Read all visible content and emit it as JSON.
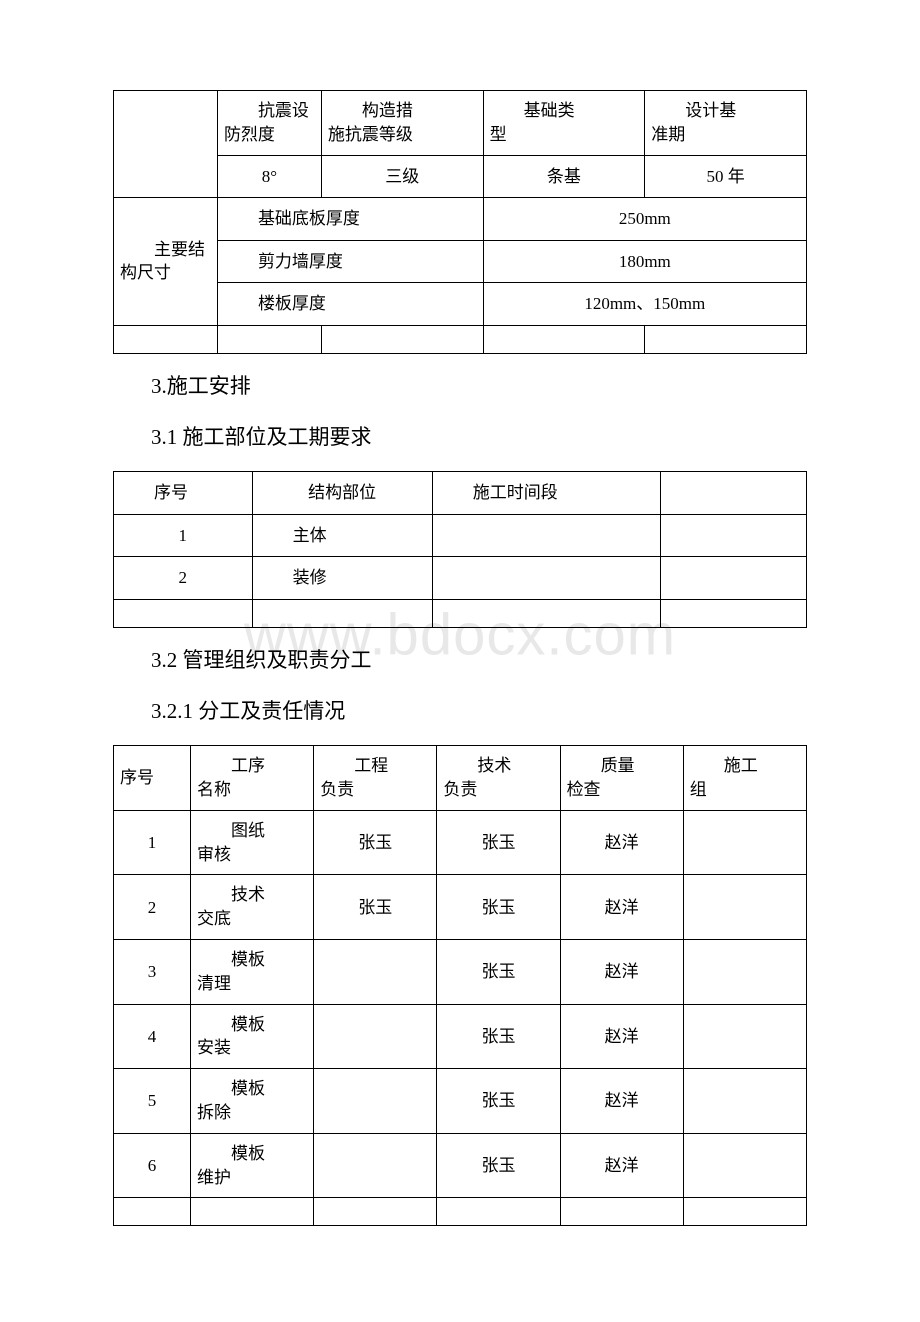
{
  "watermark": "www.bdocx.com",
  "table1": {
    "row_header_labels": {
      "seismic_intensity": {
        "l1": "抗震设",
        "l2": "防烈度"
      },
      "seismic_grade": {
        "l1": "构造措",
        "l2": "施抗震等级"
      },
      "foundation_type": {
        "l1": "基础类",
        "l2": "型"
      },
      "design_period": {
        "l1": "设计基",
        "l2": "准期"
      }
    },
    "row_header_values": {
      "seismic_intensity": "8°",
      "seismic_grade": "三级",
      "foundation_type": "条基",
      "design_period": "50 年"
    },
    "main_dim_label": {
      "l1": "主要结",
      "l2": "构尺寸"
    },
    "dims": {
      "foundation_thickness": {
        "label": "基础底板厚度",
        "value": "250mm"
      },
      "shear_wall_thickness": {
        "label": "剪力墙厚度",
        "value": "180mm"
      },
      "slab_thickness": {
        "label": "楼板厚度",
        "value": "120mm、150mm"
      }
    }
  },
  "headings": {
    "h3": "3.施工安排",
    "h31": "3.1 施工部位及工期要求",
    "h32": "3.2 管理组织及职责分工",
    "h321": "3.2.1 分工及责任情况"
  },
  "table2": {
    "headers": {
      "seq": "序号",
      "part": "结构部位",
      "period": "施工时间段"
    },
    "rows": [
      {
        "seq": "1",
        "part": "主体",
        "period": "",
        "extra": ""
      },
      {
        "seq": "2",
        "part": "装修",
        "period": "",
        "extra": ""
      }
    ]
  },
  "table3": {
    "headers": {
      "seq": "序号",
      "process": {
        "l1": "工序",
        "l2": "名称"
      },
      "eng": {
        "l1": "工程",
        "l2": "负责"
      },
      "tech": {
        "l1": "技术",
        "l2": "负责"
      },
      "qc": {
        "l1": "质量",
        "l2": "检查"
      },
      "team": {
        "l1": "施工",
        "l2": "组"
      }
    },
    "rows": [
      {
        "seq": "1",
        "process": {
          "l1": "图纸",
          "l2": "审核"
        },
        "eng": "张玉",
        "tech": "张玉",
        "qc": "赵洋",
        "team": ""
      },
      {
        "seq": "2",
        "process": {
          "l1": "技术",
          "l2": "交底"
        },
        "eng": "张玉",
        "tech": "张玉",
        "qc": "赵洋",
        "team": ""
      },
      {
        "seq": "3",
        "process": {
          "l1": "模板",
          "l2": "清理"
        },
        "eng": "",
        "tech": "张玉",
        "qc": "赵洋",
        "team": ""
      },
      {
        "seq": "4",
        "process": {
          "l1": "模板",
          "l2": "安装"
        },
        "eng": "",
        "tech": "张玉",
        "qc": "赵洋",
        "team": ""
      },
      {
        "seq": "5",
        "process": {
          "l1": "模板",
          "l2": "拆除"
        },
        "eng": "",
        "tech": "张玉",
        "qc": "赵洋",
        "team": ""
      },
      {
        "seq": "6",
        "process": {
          "l1": "模板",
          "l2": "维护"
        },
        "eng": "",
        "tech": "张玉",
        "qc": "赵洋",
        "team": ""
      }
    ]
  }
}
